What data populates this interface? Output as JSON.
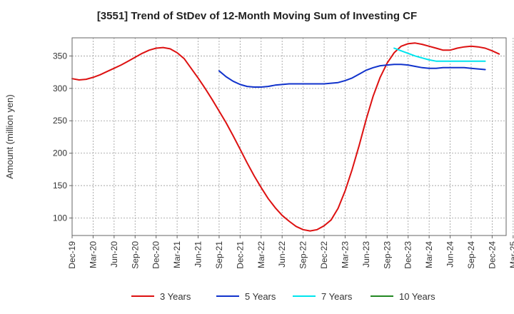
{
  "chart_data": {
    "type": "line",
    "title": "[3551]  Trend of StDev of 12-Month Moving Sum of Investing CF",
    "xlabel": "",
    "ylabel": "Amount (million yen)",
    "ylim": [
      73,
      378
    ],
    "yticks": [
      100,
      150,
      200,
      250,
      300,
      350
    ],
    "x_tick_labels": [
      "Dec-19",
      "Mar-20",
      "Jun-20",
      "Sep-20",
      "Dec-20",
      "Mar-21",
      "Jun-21",
      "Sep-21",
      "Dec-21",
      "Mar-22",
      "Jun-22",
      "Sep-22",
      "Dec-22",
      "Mar-23",
      "Jun-23",
      "Sep-23",
      "Dec-23",
      "Mar-24",
      "Jun-24",
      "Sep-24",
      "Dec-24",
      "Mar-25"
    ],
    "grid": true,
    "legend_position": "bottom",
    "series": [
      {
        "name": "3 Years",
        "color": "#dd1111",
        "start_index": 0,
        "values": [
          315,
          313,
          314,
          317,
          321,
          326,
          331,
          336,
          342,
          348,
          354,
          359,
          362,
          363,
          361,
          355,
          346,
          331,
          316,
          300,
          283,
          265,
          247,
          227,
          206,
          185,
          165,
          147,
          130,
          116,
          104,
          95,
          87,
          82,
          80,
          82,
          88,
          97,
          115,
          142,
          175,
          212,
          252,
          288,
          317,
          339,
          355,
          365,
          369,
          370,
          368,
          365,
          362,
          359,
          359,
          362,
          364,
          365,
          364,
          362,
          358,
          353
        ]
      },
      {
        "name": "5 Years",
        "color": "#1133cc",
        "start_index": 21,
        "values": [
          327,
          318,
          311,
          306,
          303,
          302,
          302,
          303,
          305,
          306,
          307,
          307,
          307,
          307,
          307,
          307,
          308,
          309,
          312,
          316,
          322,
          328,
          332,
          335,
          336,
          337,
          337,
          336,
          334,
          332,
          331,
          331,
          332,
          332,
          332,
          332,
          331,
          330,
          329
        ]
      },
      {
        "name": "7 Years",
        "color": "#00e5ee",
        "start_index": 46,
        "values": [
          362,
          358,
          354,
          350,
          347,
          344,
          342,
          342,
          342,
          342,
          342,
          342,
          342,
          342
        ]
      },
      {
        "name": "10 Years",
        "color": "#228822",
        "start_index": 0,
        "values": []
      }
    ]
  }
}
